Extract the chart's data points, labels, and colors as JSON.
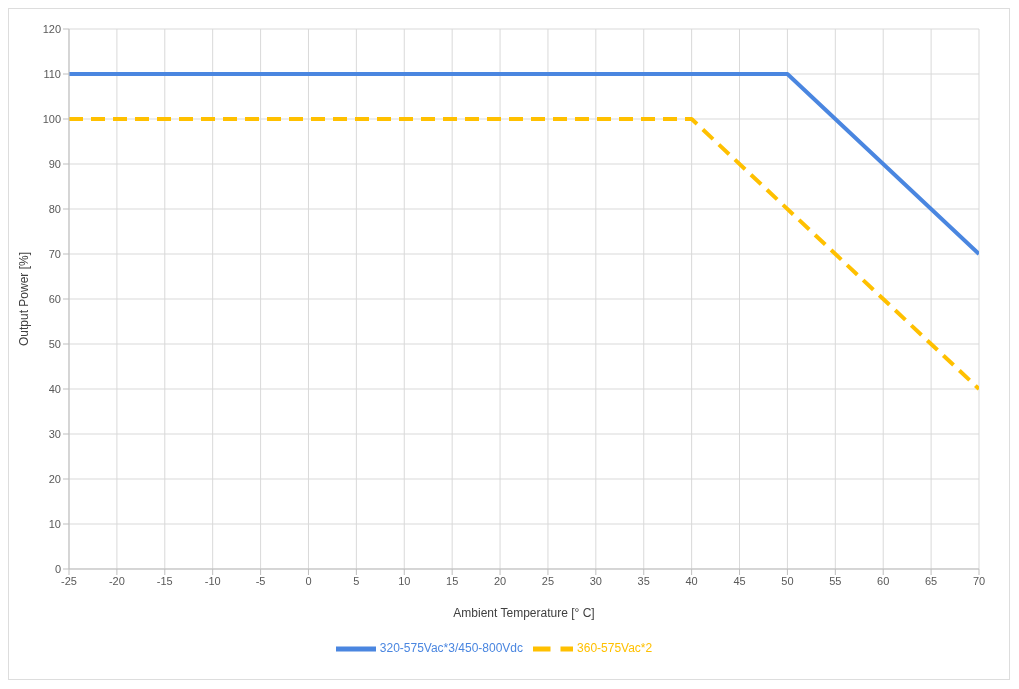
{
  "chart_data": {
    "type": "line",
    "xlabel": "Ambient Temperature [° C]",
    "ylabel": "Output Power [%]",
    "xlim": [
      -25,
      70
    ],
    "xticks": [
      -25,
      -20,
      -15,
      -10,
      -5,
      0,
      5,
      10,
      15,
      20,
      25,
      30,
      35,
      40,
      45,
      50,
      55,
      60,
      65,
      70
    ],
    "ylim": [
      0,
      120
    ],
    "yticks": [
      0,
      10,
      20,
      30,
      40,
      50,
      60,
      70,
      80,
      90,
      100,
      110,
      120
    ],
    "grid": true,
    "legend": "bottom",
    "marker": "none",
    "series": [
      {
        "name": "360-575Vac*2",
        "color": "#ffc000",
        "line_style": "dashed",
        "x": [
          -25,
          40,
          70
        ],
        "values": [
          100,
          100,
          40
        ]
      },
      {
        "name": "320-575Vac*3/450-800Vdc",
        "color": "#4a86e0",
        "line_style": "solid",
        "x": [
          -25,
          50,
          70
        ],
        "values": [
          110,
          110,
          70
        ]
      }
    ]
  }
}
